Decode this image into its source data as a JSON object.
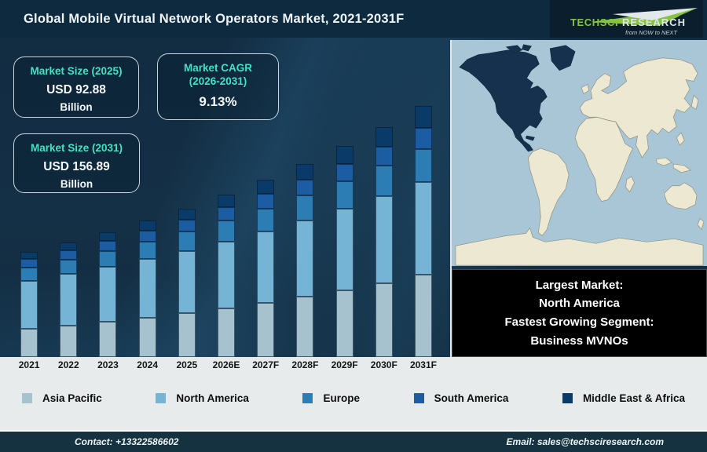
{
  "header": {
    "title": "Global Mobile Virtual Network Operators Market, 2021-2031F",
    "logo": {
      "name1": "TechSci",
      "name2": "Research",
      "tagline": "from NOW to NEXT"
    }
  },
  "info_boxes": {
    "size_2025": {
      "title": "Market Size (2025)",
      "value": "USD 92.88",
      "unit": "Billion"
    },
    "cagr": {
      "title_line1": "Market CAGR",
      "title_line2": "(2026-2031)",
      "value": "9.13%"
    },
    "size_2031": {
      "title": "Market Size (2031)",
      "value": "USD 156.89",
      "unit": "Billion"
    }
  },
  "highlight_box": {
    "line1": "Largest Market:",
    "line2": "North America",
    "line3": "Fastest Growing Segment:",
    "line4": "Business MVNOs"
  },
  "footer": {
    "contact": "Contact: +13322586602",
    "email": "Email: sales@techsciresearch.com"
  },
  "colors": {
    "accent_teal": "#44e0c4",
    "header_bg": "#0d2a3e",
    "footer_bg": "#14323f",
    "band_bg": "#e8ebec",
    "map_ocean": "#a9c6d6",
    "map_land": "#ece8d2",
    "map_highlight": "#16314d"
  },
  "chart_data": {
    "type": "bar",
    "stacked": true,
    "title": "Global Mobile Virtual Network Operators Market, 2021-2031F",
    "unit": "USD Billion",
    "legend_position": "bottom",
    "gridlines": false,
    "y_axis_visible": false,
    "categories": [
      "2021",
      "2022",
      "2023",
      "2024",
      "2025",
      "2026E",
      "2027F",
      "2028F",
      "2029F",
      "2030F",
      "2031F"
    ],
    "series": [
      {
        "name": "Asia Pacific",
        "color": "#a6c2cf",
        "values": [
          17.8,
          19.8,
          22.1,
          24.6,
          27.3,
          30.4,
          33.8,
          37.6,
          41.7,
          46.3,
          51.5
        ]
      },
      {
        "name": "North America",
        "color": "#76b4d6",
        "values": [
          29.9,
          32.0,
          34.2,
          36.6,
          39.1,
          41.8,
          44.6,
          47.6,
          50.8,
          54.2,
          57.7
        ]
      },
      {
        "name": "Europe",
        "color": "#2b7db4",
        "values": [
          8.3,
          9.1,
          9.9,
          10.9,
          12.0,
          13.1,
          14.4,
          15.8,
          17.3,
          19.0,
          20.9
        ]
      },
      {
        "name": "South America",
        "color": "#1c5ca3",
        "values": [
          5.3,
          5.8,
          6.4,
          7.0,
          7.6,
          8.4,
          9.2,
          10.0,
          11.0,
          12.0,
          13.2
        ]
      },
      {
        "name": "Middle East & Africa",
        "color": "#0a3a68",
        "values": [
          4.2,
          4.7,
          5.4,
          6.0,
          6.8,
          7.7,
          8.6,
          9.7,
          10.9,
          12.2,
          13.6
        ]
      }
    ],
    "totals": [
      65.5,
      71.4,
      78.0,
      85.1,
      92.88,
      101.4,
      110.6,
      120.7,
      131.7,
      143.7,
      156.89
    ]
  }
}
